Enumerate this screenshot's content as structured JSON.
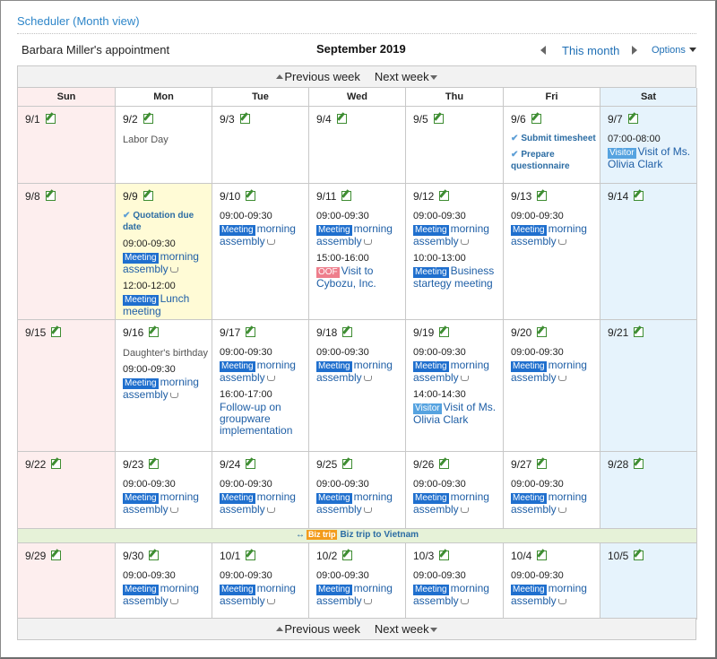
{
  "page_title": "Scheduler (Month view)",
  "owner": "Barbara Miller's appointment",
  "month_title": "September 2019",
  "this_month": "This month",
  "options": "Options",
  "prev_week": "Previous week",
  "next_week": "Next week",
  "days": [
    "Sun",
    "Mon",
    "Tue",
    "Wed",
    "Thu",
    "Fri",
    "Sat"
  ],
  "colors": {
    "accent": "#2e86c9",
    "sun": "#fdeeee",
    "sat": "#e6f3fc",
    "today": "#fffbd6",
    "meeting": "#1f6fce",
    "visitor": "#56a3e0",
    "oof": "#ee7e8c",
    "biz": "#f39c1c"
  },
  "weeks": [
    {
      "cells": [
        {
          "date": "9/1",
          "type": "sun",
          "items": []
        },
        {
          "date": "9/2",
          "items": [
            {
              "kind": "holiday",
              "text": "Labor Day"
            }
          ]
        },
        {
          "date": "9/3",
          "items": []
        },
        {
          "date": "9/4",
          "items": []
        },
        {
          "date": "9/5",
          "items": []
        },
        {
          "date": "9/6",
          "items": [
            {
              "kind": "todo",
              "text": "Submit timesheet"
            },
            {
              "kind": "todo",
              "text": "Prepare questionnaire"
            }
          ]
        },
        {
          "date": "9/7",
          "type": "sat",
          "items": [
            {
              "kind": "event",
              "time": "07:00-08:00",
              "tag": "Visitor",
              "tagclass": "visitor",
              "title": "Visit of Ms. Olivia Clark"
            }
          ]
        }
      ]
    },
    {
      "cells": [
        {
          "date": "9/8",
          "type": "sun",
          "items": []
        },
        {
          "date": "9/9",
          "type": "today",
          "items": [
            {
              "kind": "todo",
              "text": "Quotation due date"
            },
            {
              "kind": "event",
              "time": "09:00-09:30",
              "tag": "Meeting",
              "tagclass": "meeting",
              "title": "morning assembly",
              "repeat": true
            },
            {
              "kind": "event",
              "time": "12:00-12:00",
              "tag": "Meeting",
              "tagclass": "meeting",
              "title": "Lunch meeting"
            }
          ]
        },
        {
          "date": "9/10",
          "items": [
            {
              "kind": "event",
              "time": "09:00-09:30",
              "tag": "Meeting",
              "tagclass": "meeting",
              "title": "morning assembly",
              "repeat": true
            }
          ]
        },
        {
          "date": "9/11",
          "items": [
            {
              "kind": "event",
              "time": "09:00-09:30",
              "tag": "Meeting",
              "tagclass": "meeting",
              "title": "morning assembly",
              "repeat": true
            },
            {
              "kind": "event",
              "time": "15:00-16:00",
              "tag": "OOF",
              "tagclass": "oof",
              "title": "Visit to Cybozu, Inc."
            }
          ]
        },
        {
          "date": "9/12",
          "items": [
            {
              "kind": "event",
              "time": "09:00-09:30",
              "tag": "Meeting",
              "tagclass": "meeting",
              "title": "morning assembly",
              "repeat": true
            },
            {
              "kind": "event",
              "time": "10:00-13:00",
              "tag": "Meeting",
              "tagclass": "meeting",
              "title": "Business startegy meeting"
            }
          ]
        },
        {
          "date": "9/13",
          "items": [
            {
              "kind": "event",
              "time": "09:00-09:30",
              "tag": "Meeting",
              "tagclass": "meeting",
              "title": "morning assembly",
              "repeat": true
            }
          ]
        },
        {
          "date": "9/14",
          "type": "sat",
          "items": []
        }
      ]
    },
    {
      "cells": [
        {
          "date": "9/15",
          "type": "sun",
          "items": []
        },
        {
          "date": "9/16",
          "items": [
            {
              "kind": "holiday",
              "text": "Daughter's birthday"
            },
            {
              "kind": "event",
              "time": "09:00-09:30",
              "tag": "Meeting",
              "tagclass": "meeting",
              "title": "morning assembly",
              "repeat": true
            }
          ]
        },
        {
          "date": "9/17",
          "items": [
            {
              "kind": "event",
              "time": "09:00-09:30",
              "tag": "Meeting",
              "tagclass": "meeting",
              "title": "morning assembly",
              "repeat": true
            },
            {
              "kind": "event",
              "time": "16:00-17:00",
              "title": "Follow-up on groupware implementation"
            }
          ]
        },
        {
          "date": "9/18",
          "items": [
            {
              "kind": "event",
              "time": "09:00-09:30",
              "tag": "Meeting",
              "tagclass": "meeting",
              "title": "morning assembly",
              "repeat": true
            }
          ]
        },
        {
          "date": "9/19",
          "items": [
            {
              "kind": "event",
              "time": "09:00-09:30",
              "tag": "Meeting",
              "tagclass": "meeting",
              "title": "morning assembly",
              "repeat": true
            },
            {
              "kind": "event",
              "time": "14:00-14:30",
              "tag": "Visitor",
              "tagclass": "visitor",
              "title": "Visit of Ms. Olivia Clark"
            }
          ]
        },
        {
          "date": "9/20",
          "items": [
            {
              "kind": "event",
              "time": "09:00-09:30",
              "tag": "Meeting",
              "tagclass": "meeting",
              "title": "morning assembly",
              "repeat": true
            }
          ]
        },
        {
          "date": "9/21",
          "type": "sat",
          "items": []
        }
      ]
    },
    {
      "cells": [
        {
          "date": "9/22",
          "type": "sun",
          "items": []
        },
        {
          "date": "9/23",
          "items": [
            {
              "kind": "event",
              "time": "09:00-09:30",
              "tag": "Meeting",
              "tagclass": "meeting",
              "title": "morning assembly",
              "repeat": true
            }
          ]
        },
        {
          "date": "9/24",
          "items": [
            {
              "kind": "event",
              "time": "09:00-09:30",
              "tag": "Meeting",
              "tagclass": "meeting",
              "title": "morning assembly",
              "repeat": true
            }
          ]
        },
        {
          "date": "9/25",
          "items": [
            {
              "kind": "event",
              "time": "09:00-09:30",
              "tag": "Meeting",
              "tagclass": "meeting",
              "title": "morning assembly",
              "repeat": true
            }
          ]
        },
        {
          "date": "9/26",
          "items": [
            {
              "kind": "event",
              "time": "09:00-09:30",
              "tag": "Meeting",
              "tagclass": "meeting",
              "title": "morning assembly",
              "repeat": true
            }
          ]
        },
        {
          "date": "9/27",
          "items": [
            {
              "kind": "event",
              "time": "09:00-09:30",
              "tag": "Meeting",
              "tagclass": "meeting",
              "title": "morning assembly",
              "repeat": true
            }
          ]
        },
        {
          "date": "9/28",
          "type": "sat",
          "items": []
        }
      ]
    },
    {
      "banner": {
        "arrows": "↔",
        "tag": "Biz trip",
        "text": "Biz trip to Vietnam"
      },
      "cells": [
        {
          "date": "9/29",
          "type": "sun",
          "items": []
        },
        {
          "date": "9/30",
          "items": [
            {
              "kind": "event",
              "time": "09:00-09:30",
              "tag": "Meeting",
              "tagclass": "meeting",
              "title": "morning assembly",
              "repeat": true
            }
          ]
        },
        {
          "date": "10/1",
          "items": [
            {
              "kind": "event",
              "time": "09:00-09:30",
              "tag": "Meeting",
              "tagclass": "meeting",
              "title": "morning assembly",
              "repeat": true
            }
          ]
        },
        {
          "date": "10/2",
          "items": [
            {
              "kind": "event",
              "time": "09:00-09:30",
              "tag": "Meeting",
              "tagclass": "meeting",
              "title": "morning assembly",
              "repeat": true
            }
          ]
        },
        {
          "date": "10/3",
          "items": [
            {
              "kind": "event",
              "time": "09:00-09:30",
              "tag": "Meeting",
              "tagclass": "meeting",
              "title": "morning assembly",
              "repeat": true
            }
          ]
        },
        {
          "date": "10/4",
          "items": [
            {
              "kind": "event",
              "time": "09:00-09:30",
              "tag": "Meeting",
              "tagclass": "meeting",
              "title": "morning assembly",
              "repeat": true
            }
          ]
        },
        {
          "date": "10/5",
          "type": "sat",
          "items": []
        }
      ]
    }
  ]
}
